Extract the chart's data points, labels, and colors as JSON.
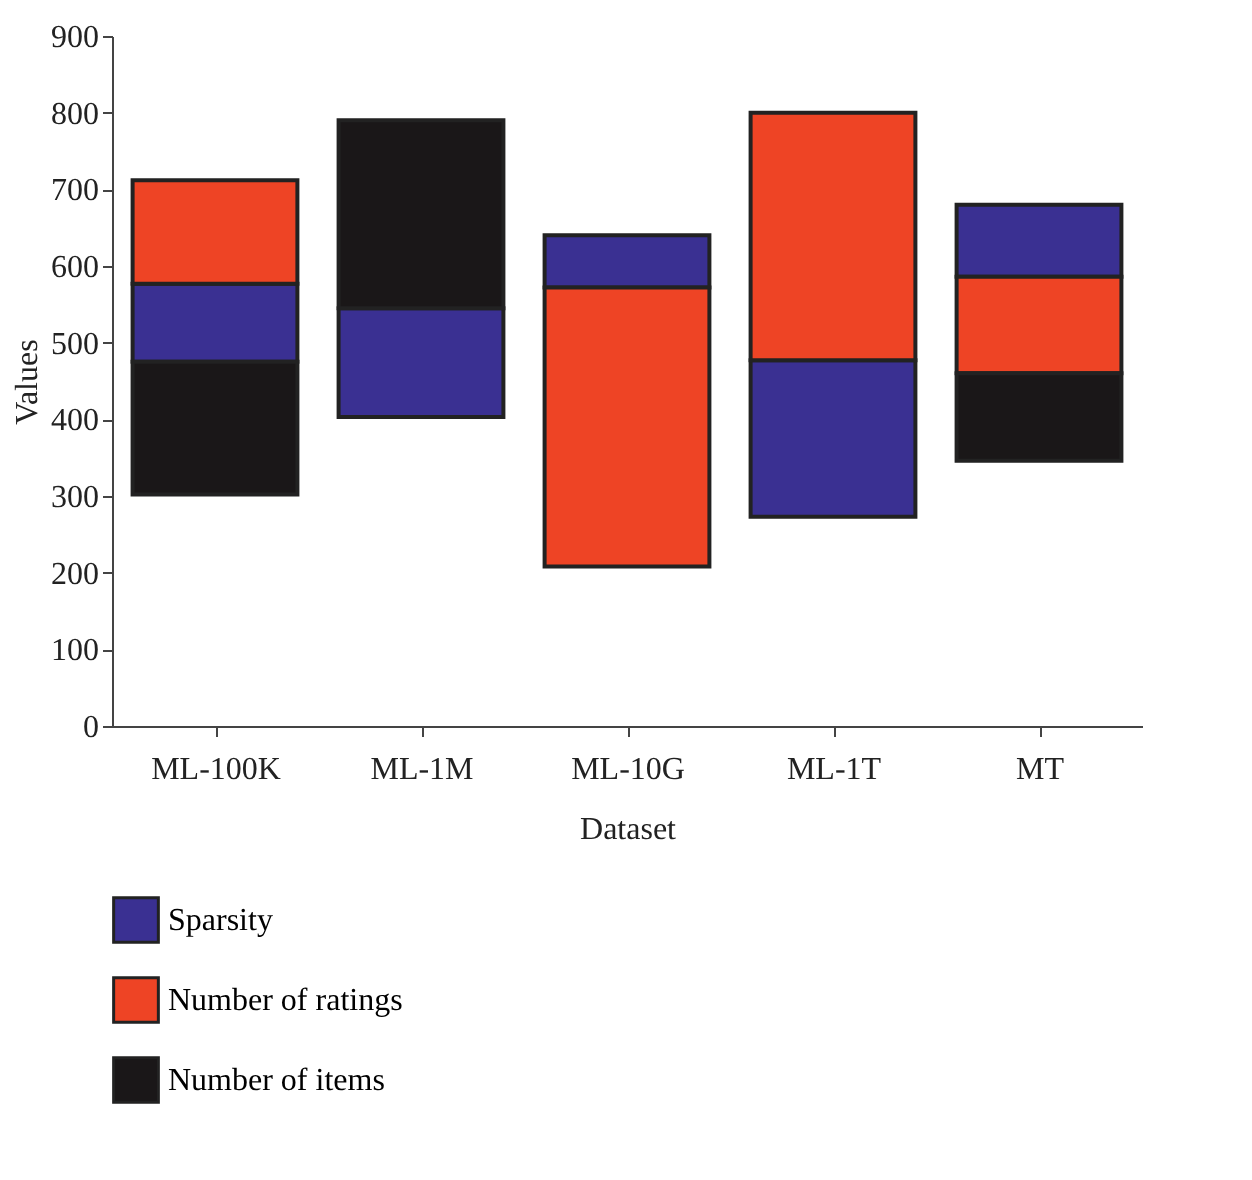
{
  "chart_data": {
    "type": "bar",
    "xlabel": "Dataset",
    "ylabel": "Values",
    "categories": [
      "ML-100K",
      "ML-1M",
      "ML-10G",
      "ML-1T",
      "MT"
    ],
    "series": [
      {
        "name": "Sparsity",
        "color": "#3a3092",
        "base": [
          475,
          403,
          572,
          273,
          586
        ],
        "values": [
          102,
          142,
          68,
          204,
          94
        ]
      },
      {
        "name": "Number of ratings",
        "color": "#ee4425",
        "base": [
          577,
          null,
          208,
          477,
          460
        ],
        "values": [
          135,
          null,
          364,
          323,
          126
        ]
      },
      {
        "name": "Number of items",
        "color": "#1a1718",
        "base": [
          302,
          545,
          null,
          null,
          346
        ],
        "values": [
          173,
          245,
          null,
          null,
          114
        ]
      }
    ],
    "ylim": [
      0,
      900
    ],
    "yticks": [
      0,
      100,
      200,
      300,
      400,
      500,
      600,
      700,
      800,
      900
    ],
    "grid": false,
    "legend": "bottom"
  }
}
